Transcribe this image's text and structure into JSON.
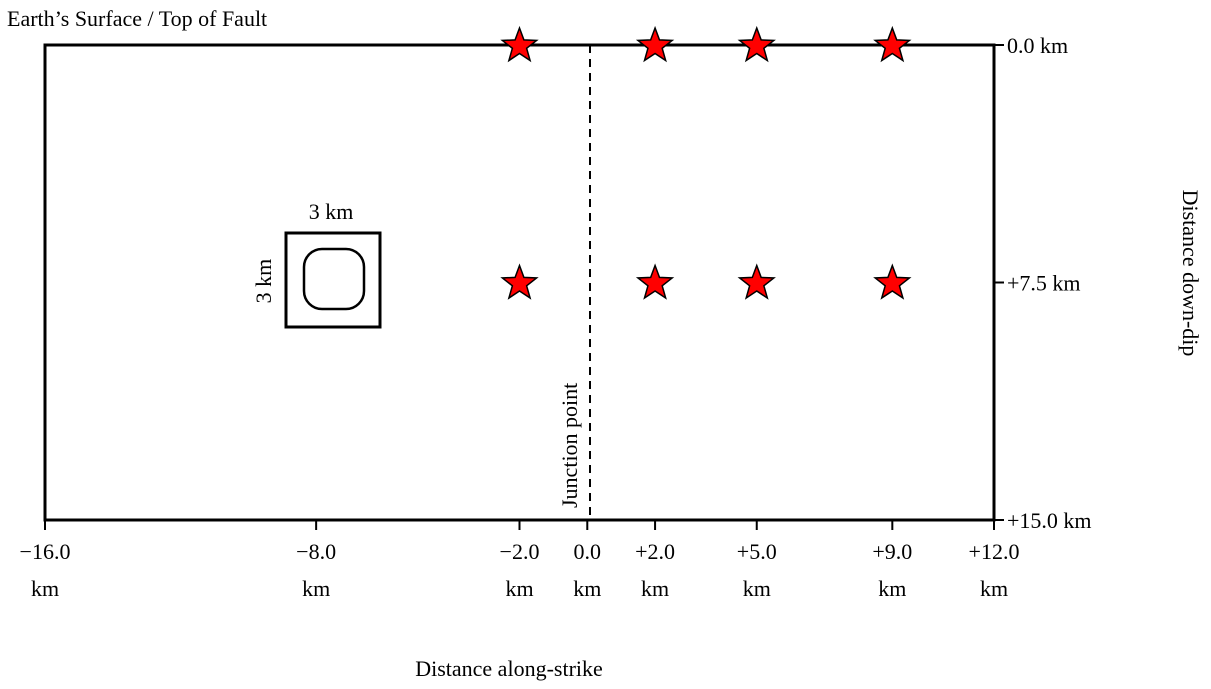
{
  "surface_label": "Earth’s Surface / Top of Fault",
  "x_axis_label": "Distance along-strike",
  "y_axis_label": "Distance down-dip",
  "x_ticks": [
    {
      "value": -16.0,
      "label": "−16.0",
      "unit": "km"
    },
    {
      "value": -8.0,
      "label": "−8.0",
      "unit": "km"
    },
    {
      "value": -2.0,
      "label": "−2.0",
      "unit": "km"
    },
    {
      "value": 0.0,
      "label": "0.0",
      "unit": "km"
    },
    {
      "value": 2.0,
      "label": "+2.0",
      "unit": "km"
    },
    {
      "value": 5.0,
      "label": "+5.0",
      "unit": "km"
    },
    {
      "value": 9.0,
      "label": "+9.0",
      "unit": "km"
    },
    {
      "value": 12.0,
      "label": "+12.0",
      "unit": "km"
    }
  ],
  "y_ticks": [
    {
      "value": 0.0,
      "label": "0.0 km"
    },
    {
      "value": 7.5,
      "label": "+7.5 km"
    },
    {
      "value": 15.0,
      "label": "+15.0 km"
    }
  ],
  "x_range": [
    -16.0,
    12.0
  ],
  "y_range": [
    0.0,
    15.0
  ],
  "junction_label": "Junction  point",
  "junction_x": 0.0,
  "patch": {
    "center_x": -8.0,
    "center_y": 7.5,
    "width_km": 3,
    "height_km": 3,
    "width_label": "3 km",
    "height_label": "3 km"
  },
  "stations": [
    {
      "x": -2.0,
      "y": 0.0
    },
    {
      "x": 2.0,
      "y": 0.0
    },
    {
      "x": 5.0,
      "y": 0.0
    },
    {
      "x": 9.0,
      "y": 0.0
    },
    {
      "x": -2.0,
      "y": 7.5
    },
    {
      "x": 2.0,
      "y": 7.5
    },
    {
      "x": 5.0,
      "y": 7.5
    },
    {
      "x": 9.0,
      "y": 7.5
    }
  ],
  "colors": {
    "star_fill": "#ff0000",
    "star_stroke": "#000000"
  }
}
